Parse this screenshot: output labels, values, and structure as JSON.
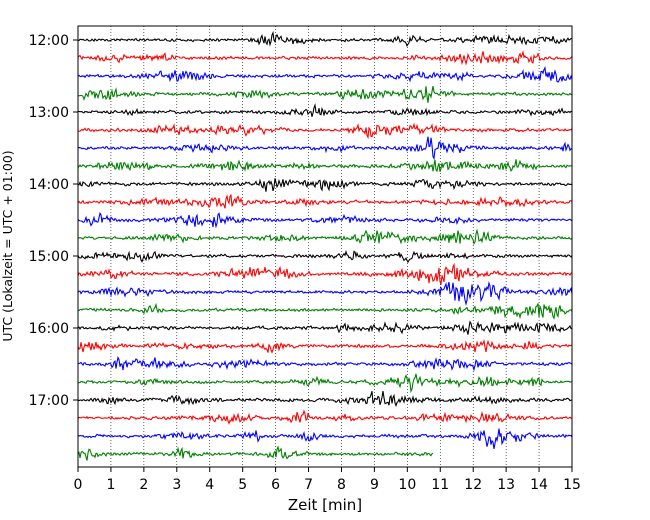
{
  "chart_data": {
    "type": "line",
    "title": "",
    "xlabel": "Zeit  [min]",
    "ylabel": "UTC (Lokalzeit = UTC + 01:00)",
    "xlim": [
      0,
      15
    ],
    "x_ticks": [
      "0",
      "1",
      "2",
      "3",
      "4",
      "5",
      "6",
      "7",
      "8",
      "9",
      "10",
      "11",
      "12",
      "13",
      "14",
      "15"
    ],
    "y_ticks": [
      {
        "label": "12:00",
        "trace_index": 0
      },
      {
        "label": "13:00",
        "trace_index": 4
      },
      {
        "label": "14:00",
        "trace_index": 8
      },
      {
        "label": "15:00",
        "trace_index": 12
      },
      {
        "label": "16:00",
        "trace_index": 16
      },
      {
        "label": "17:00",
        "trace_index": 20
      }
    ],
    "trace_interval_min": 15,
    "trace_count": 24,
    "trace_colors": [
      "#000000",
      "#ff0000",
      "#0000ff",
      "#007f00"
    ],
    "last_trace_end_min": 10.8,
    "grid": "vertical-dotted"
  }
}
